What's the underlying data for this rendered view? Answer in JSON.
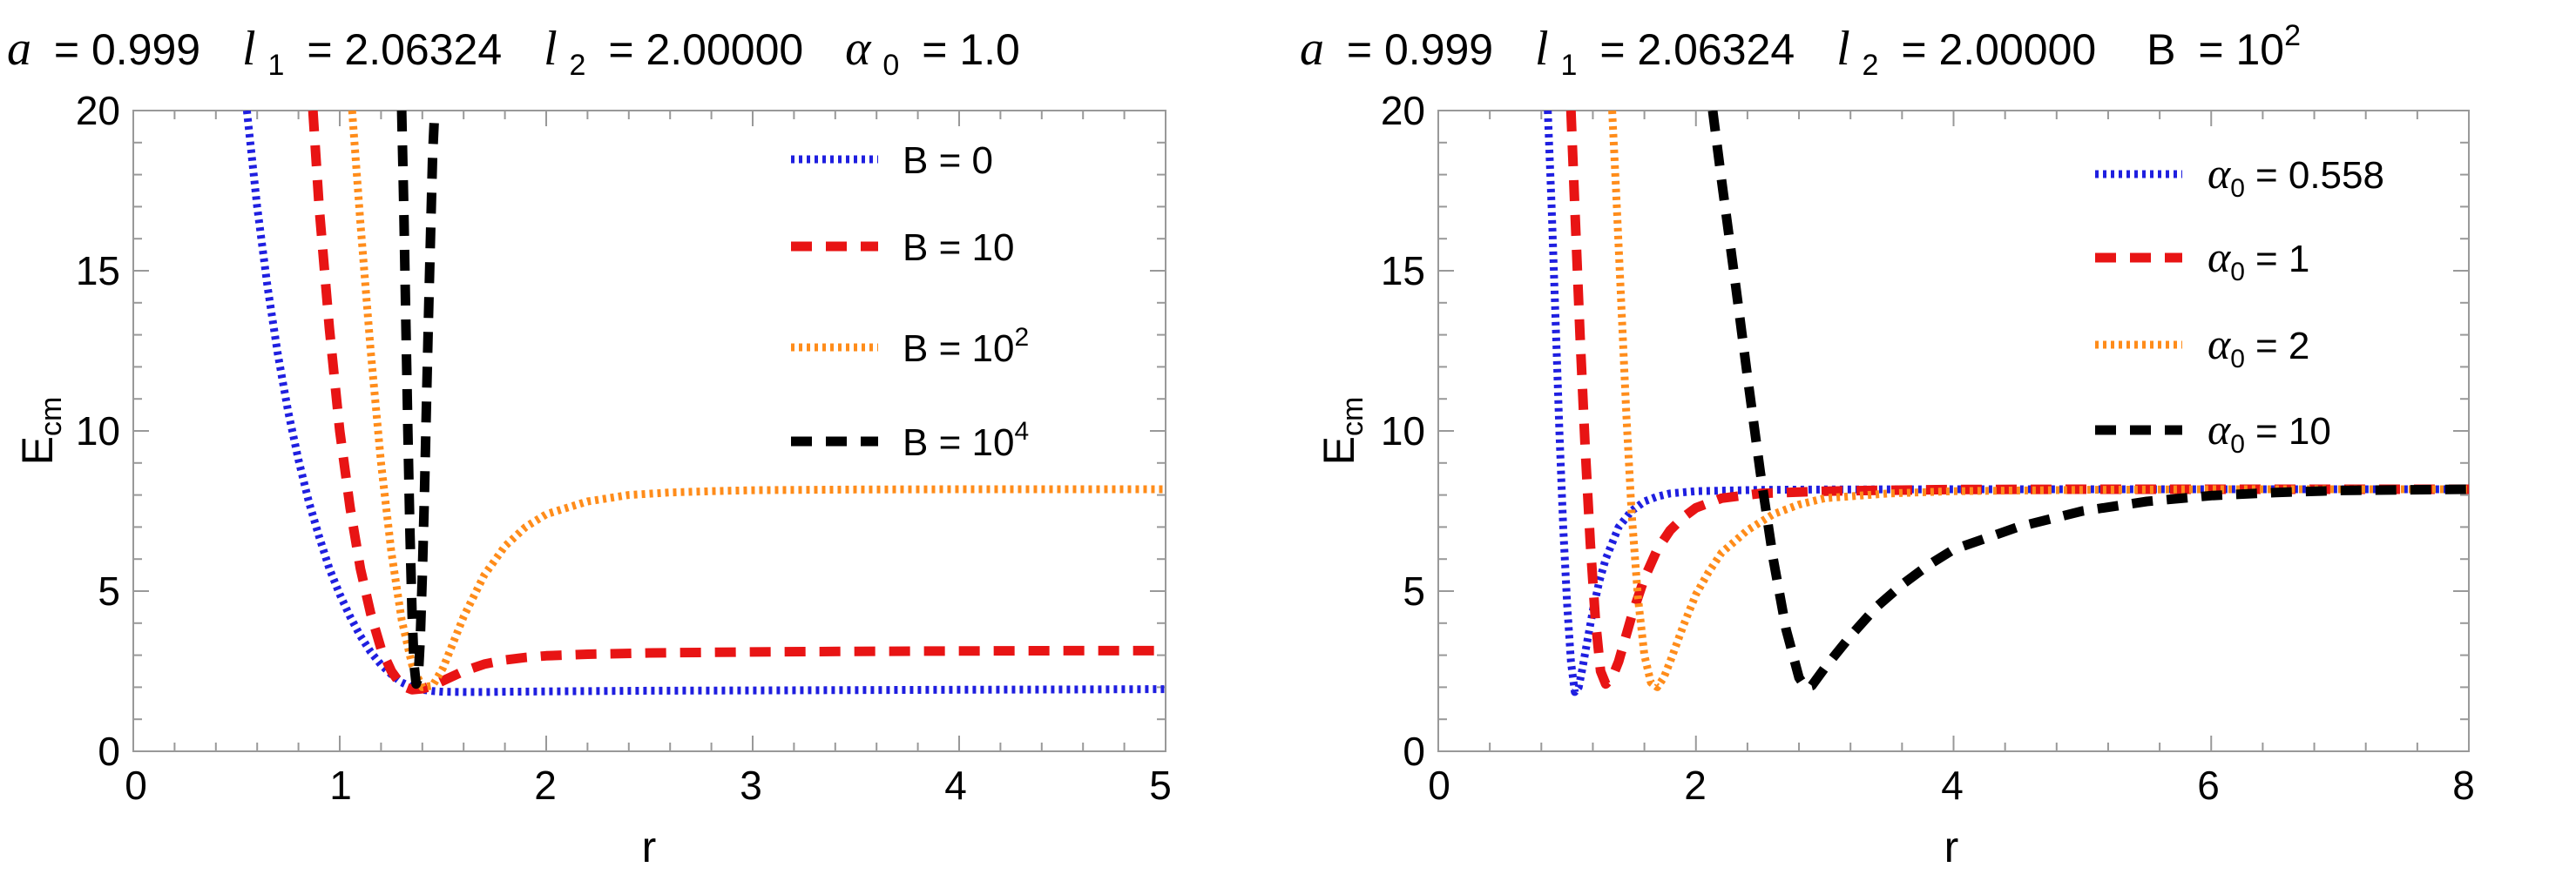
{
  "colors": {
    "blue": "#1f1fe0",
    "red": "#e81414",
    "orange": "#ff8c1a",
    "black": "#000000",
    "frame": "#999999"
  },
  "chart_data": [
    {
      "type": "line",
      "title_parts": {
        "a_sym": "a",
        "a_val": "= 0.999",
        "l1_sym": "l",
        "l1_sub": "1",
        "l1_val": "= 2.06324",
        "l2_sym": "l",
        "l2_sub": "2",
        "l2_val": "= 2.00000",
        "p_sym": "α",
        "p_sub": "0",
        "p_val": "= 1.0",
        "p_sup": ""
      },
      "xlabel": "r",
      "ylabel_main": "E",
      "ylabel_sub": "cm",
      "xlim": [
        0,
        5
      ],
      "ylim": [
        0,
        20
      ],
      "xticks": [
        "0",
        "1",
        "2",
        "3",
        "4",
        "5"
      ],
      "yticks": [
        "0",
        "5",
        "10",
        "15",
        "20"
      ],
      "legend_position": "top-right",
      "series": [
        {
          "name_main": "B = 0",
          "name_sup": "",
          "style": "dotted",
          "color": "blue",
          "x": [
            0.55,
            0.6,
            0.65,
            0.7,
            0.75,
            0.8,
            0.85,
            0.9,
            0.95,
            1.0,
            1.05,
            1.1,
            1.15,
            1.2,
            1.25,
            1.3,
            1.35,
            1.4,
            1.45,
            1.5,
            1.6,
            1.7,
            1.8,
            2.0,
            2.5,
            3.0,
            3.5,
            4.0,
            4.5,
            5.0
          ],
          "y": [
            20,
            17.0,
            14.5,
            12.4,
            10.6,
            9.1,
            7.8,
            6.7,
            5.7,
            4.9,
            4.2,
            3.6,
            3.1,
            2.7,
            2.4,
            2.15,
            2.0,
            1.92,
            1.88,
            1.86,
            1.85,
            1.85,
            1.86,
            1.87,
            1.89,
            1.9,
            1.91,
            1.92,
            1.93,
            1.94
          ]
        },
        {
          "name_main": "B = 10",
          "name_sup": "",
          "style": "dashed",
          "color": "red",
          "x": [
            0.87,
            0.9,
            0.95,
            1.0,
            1.05,
            1.1,
            1.15,
            1.2,
            1.25,
            1.3,
            1.35,
            1.4,
            1.45,
            1.5,
            1.6,
            1.7,
            1.8,
            1.9,
            2.0,
            2.2,
            2.5,
            3.0,
            3.5,
            4.0,
            4.5,
            5.0
          ],
          "y": [
            20,
            17.0,
            13.2,
            10.0,
            7.6,
            5.7,
            4.3,
            3.2,
            2.5,
            2.05,
            1.92,
            1.95,
            2.05,
            2.2,
            2.5,
            2.72,
            2.85,
            2.93,
            2.98,
            3.03,
            3.07,
            3.1,
            3.12,
            3.13,
            3.14,
            3.14
          ]
        },
        {
          "name_main": "B = 10",
          "name_sup": "2",
          "style": "dotted",
          "color": "orange",
          "x": [
            1.06,
            1.1,
            1.15,
            1.2,
            1.25,
            1.3,
            1.35,
            1.4,
            1.45,
            1.5,
            1.55,
            1.6,
            1.7,
            1.8,
            1.9,
            2.0,
            2.2,
            2.4,
            2.6,
            2.8,
            3.0,
            3.5,
            4.0,
            4.5,
            5.0
          ],
          "y": [
            20,
            16.5,
            12.5,
            9.0,
            6.2,
            4.1,
            2.7,
            2.0,
            2.05,
            2.6,
            3.4,
            4.2,
            5.5,
            6.4,
            7.0,
            7.4,
            7.8,
            8.0,
            8.08,
            8.12,
            8.15,
            8.17,
            8.18,
            8.18,
            8.18
          ]
        },
        {
          "name_main": "B = 10",
          "name_sup": "4",
          "style": "dashed",
          "color": "black",
          "x": [
            1.3,
            1.31,
            1.32,
            1.33,
            1.34,
            1.35,
            1.36,
            1.37,
            1.38,
            1.39,
            1.4,
            1.41,
            1.42,
            1.43,
            1.44,
            1.45,
            1.46
          ],
          "y": [
            20,
            17.0,
            13.5,
            10.0,
            6.8,
            4.3,
            2.7,
            2.1,
            2.3,
            3.5,
            5.5,
            8.0,
            10.8,
            13.6,
            16.2,
            18.6,
            20
          ]
        }
      ]
    },
    {
      "type": "line",
      "title_parts": {
        "a_sym": "a",
        "a_val": "= 0.999",
        "l1_sym": "l",
        "l1_sub": "1",
        "l1_val": "= 2.06324",
        "l2_sym": "l",
        "l2_sub": "2",
        "l2_val": "= 2.00000",
        "p_sym": "B",
        "p_sub": "",
        "p_val": "= 10",
        "p_sup": "2"
      },
      "xlabel": "r",
      "ylabel_main": "E",
      "ylabel_sub": "cm",
      "xlim": [
        0,
        8
      ],
      "ylim": [
        0,
        20
      ],
      "xticks": [
        "0",
        "2",
        "4",
        "6",
        "8"
      ],
      "yticks": [
        "0",
        "5",
        "10",
        "15",
        "20"
      ],
      "legend_position": "top-right",
      "series": [
        {
          "name_main": "α",
          "name_sub": "0",
          "name_val": "= 0.558",
          "style": "dotted",
          "color": "blue",
          "x": [
            0.85,
            0.88,
            0.91,
            0.94,
            0.97,
            1.0,
            1.03,
            1.06,
            1.09,
            1.12,
            1.15,
            1.2,
            1.25,
            1.3,
            1.4,
            1.5,
            1.6,
            1.7,
            1.8,
            2.0,
            2.5,
            3.0,
            4.0,
            5.0,
            6.0,
            7.0,
            8.0
          ],
          "y": [
            20,
            17.0,
            13.5,
            10.0,
            7.0,
            4.6,
            2.8,
            1.85,
            2.0,
            2.6,
            3.3,
            4.4,
            5.3,
            6.0,
            7.0,
            7.5,
            7.8,
            7.95,
            8.05,
            8.12,
            8.16,
            8.17,
            8.18,
            8.18,
            8.18,
            8.18,
            8.18
          ]
        },
        {
          "name_main": "α",
          "name_sub": "0",
          "name_val": "= 1",
          "style": "dashed",
          "color": "red",
          "x": [
            1.03,
            1.06,
            1.1,
            1.14,
            1.18,
            1.22,
            1.26,
            1.3,
            1.35,
            1.4,
            1.45,
            1.5,
            1.6,
            1.7,
            1.8,
            1.9,
            2.0,
            2.2,
            2.5,
            3.0,
            3.5,
            4.0,
            5.0,
            6.0,
            8.0
          ],
          "y": [
            20,
            17.0,
            13.0,
            9.5,
            6.5,
            4.1,
            2.5,
            2.1,
            2.3,
            2.8,
            3.5,
            4.2,
            5.4,
            6.3,
            6.9,
            7.3,
            7.6,
            7.9,
            8.05,
            8.12,
            8.15,
            8.17,
            8.18,
            8.18,
            8.18
          ]
        },
        {
          "name_main": "α",
          "name_sub": "0",
          "name_val": "= 2",
          "style": "dotted",
          "color": "orange",
          "x": [
            1.35,
            1.38,
            1.42,
            1.46,
            1.5,
            1.55,
            1.6,
            1.65,
            1.7,
            1.75,
            1.8,
            1.9,
            2.0,
            2.1,
            2.2,
            2.4,
            2.6,
            2.8,
            3.0,
            3.5,
            4.0,
            5.0,
            6.0,
            8.0
          ],
          "y": [
            20,
            17.5,
            14.0,
            10.5,
            7.5,
            4.8,
            3.0,
            2.15,
            2.0,
            2.3,
            2.8,
            3.9,
            4.9,
            5.6,
            6.2,
            6.9,
            7.4,
            7.7,
            7.9,
            8.05,
            8.12,
            8.16,
            8.18,
            8.18
          ]
        },
        {
          "name_main": "α",
          "name_sub": "0",
          "name_val": "= 10",
          "style": "dashed",
          "color": "black",
          "x": [
            2.13,
            2.2,
            2.3,
            2.4,
            2.5,
            2.6,
            2.7,
            2.8,
            2.85,
            2.9,
            3.0,
            3.2,
            3.4,
            3.6,
            3.8,
            4.0,
            4.5,
            5.0,
            5.5,
            6.0,
            6.5,
            7.0,
            8.0
          ],
          "y": [
            20,
            17.8,
            14.8,
            11.7,
            8.7,
            6.0,
            3.8,
            2.3,
            2.0,
            2.05,
            2.6,
            3.6,
            4.5,
            5.2,
            5.8,
            6.3,
            7.0,
            7.5,
            7.8,
            7.98,
            8.08,
            8.14,
            8.18
          ]
        }
      ]
    }
  ]
}
